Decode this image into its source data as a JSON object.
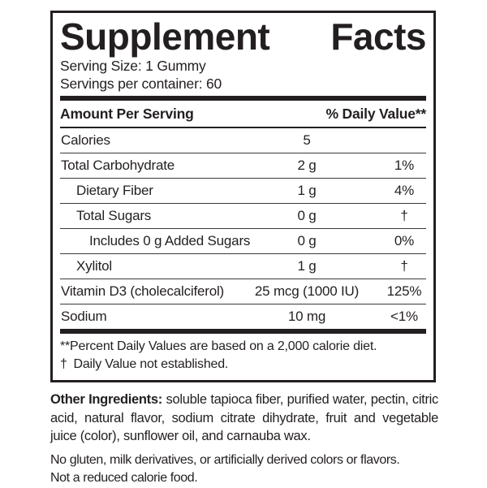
{
  "label": {
    "title": "Supplement Facts",
    "serving_size": "Serving Size: 1 Gummy",
    "servings_per_container": "Servings per container: 60",
    "columns": {
      "amount": "Amount Per Serving",
      "daily_value": "% Daily Value**"
    },
    "rows": [
      {
        "name": "Calories",
        "amount": "5",
        "dv": "",
        "indent": 0
      },
      {
        "name": "Total Carbohydrate",
        "amount": "2 g",
        "dv": "1%",
        "indent": 0
      },
      {
        "name": "Dietary Fiber",
        "amount": "1 g",
        "dv": "4%",
        "indent": 1
      },
      {
        "name": "Total Sugars",
        "amount": "0 g",
        "dv": "†",
        "indent": 1
      },
      {
        "name": "Includes 0 g Added Sugars",
        "amount": "0 g",
        "dv": "0%",
        "indent": 2
      },
      {
        "name": "Xylitol",
        "amount": "1 g",
        "dv": "†",
        "indent": 1
      },
      {
        "name": "Vitamin D3 (cholecalciferol)",
        "amount": "25 mcg (1000 IU)",
        "dv": "125%",
        "indent": 0
      },
      {
        "name": "Sodium",
        "amount": "10 mg",
        "dv": "<1%",
        "indent": 0
      }
    ],
    "footnotes": [
      "**Percent Daily Values are based on a 2,000 calorie diet.",
      "† Daily Value not established."
    ]
  },
  "below": {
    "other_ingredients_label": "Other Ingredients:",
    "other_ingredients_text": "soluble tapioca fiber, purified water, pectin, citric acid, natural flavor, sodium citrate dihydrate, fruit and vegetable juice (color), sunflower oil, and carnauba wax.",
    "statements": [
      "No gluten, milk derivatives, or artificially derived colors or flavors.",
      "Not a reduced calorie food."
    ]
  },
  "colors": {
    "text": "#231f20",
    "background": "#ffffff"
  }
}
